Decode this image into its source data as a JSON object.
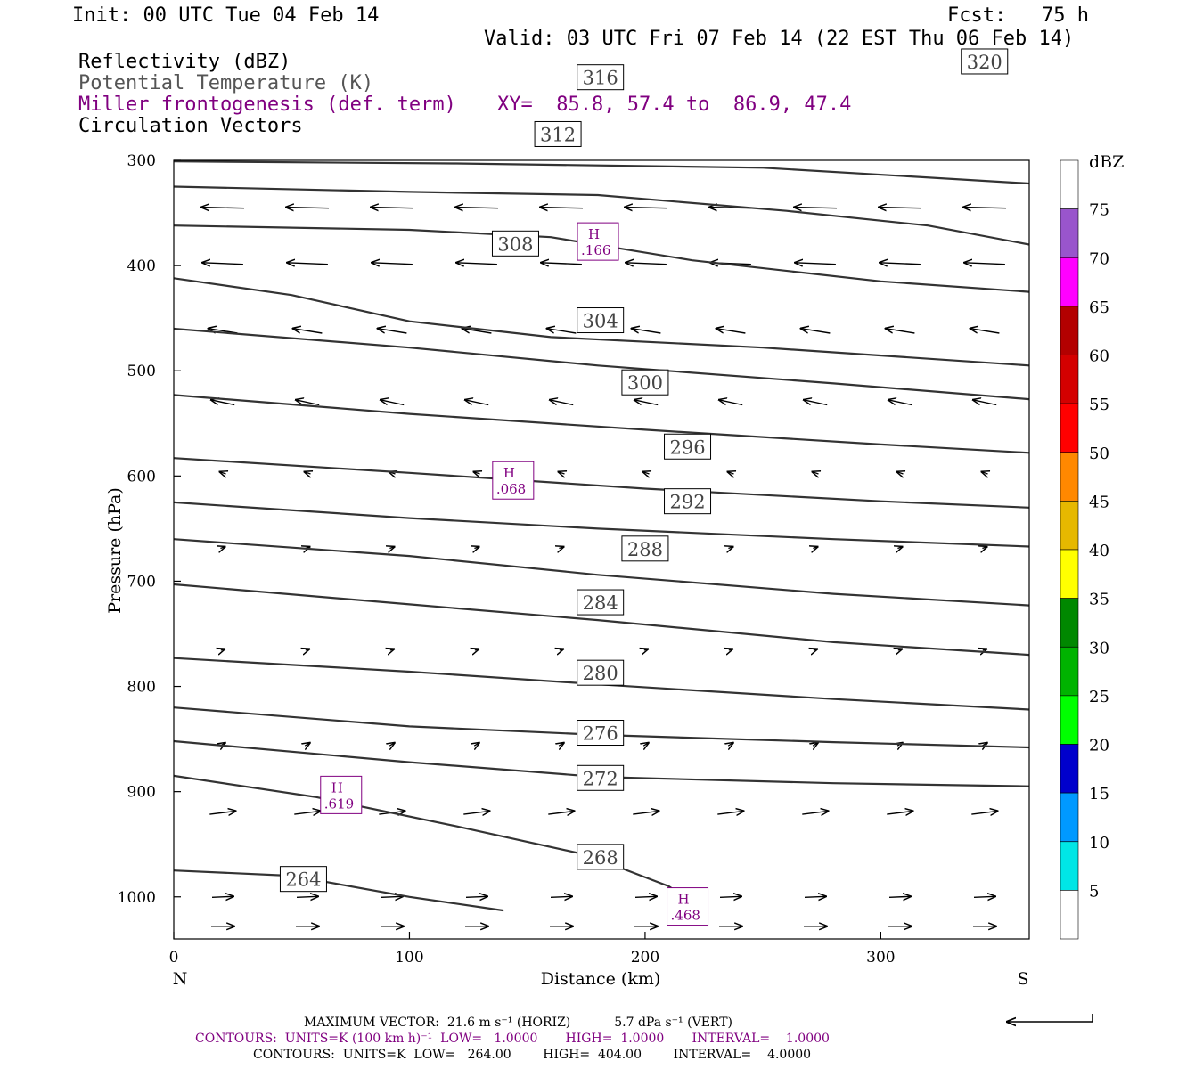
{
  "header": {
    "init": "Init: 00 UTC Tue 04 Feb 14",
    "fcst": "Fcst:   75 h",
    "valid": "Valid: 03 UTC Fri 07 Feb 14 (22 EST Thu 06 Feb 14)",
    "field1": "Reflectivity (dBZ)",
    "field2": "Potential Temperature (K)",
    "field3": "Miller frontogenesis (def. term)",
    "xy": "XY=  85.8, 57.4 to  86.9, 47.4",
    "field4": "Circulation Vectors"
  },
  "colors": {
    "purple": "#800080",
    "theta_line": "#333333",
    "axis": "#000000"
  },
  "chart_data": {
    "type": "line",
    "xlabel": "Distance (km)",
    "ylabel": "Pressure (hPa)",
    "xlim": [
      0,
      363
    ],
    "ylim": [
      1040,
      300
    ],
    "x_ticks": [
      0,
      100,
      200,
      300
    ],
    "y_ticks": [
      300,
      400,
      500,
      600,
      700,
      800,
      900,
      1000
    ],
    "x_end_labels": [
      "N",
      "S"
    ],
    "theta_contours": [
      {
        "label": "264",
        "points": [
          [
            0,
            975
          ],
          [
            50,
            980
          ],
          [
            100,
            1000
          ],
          [
            140,
            1013
          ]
        ],
        "label_at": [
          55,
          983
        ]
      },
      {
        "label": "268",
        "points": [
          [
            0,
            885
          ],
          [
            60,
            905
          ],
          [
            120,
            933
          ],
          [
            175,
            960
          ],
          [
            210,
            990
          ],
          [
            222,
            1008
          ]
        ],
        "label_at": [
          181,
          962
        ]
      },
      {
        "label": "272",
        "points": [
          [
            0,
            852
          ],
          [
            100,
            872
          ],
          [
            180,
            886
          ],
          [
            280,
            892
          ],
          [
            363,
            895
          ]
        ],
        "label_at": [
          181,
          887
        ]
      },
      {
        "label": "276",
        "points": [
          [
            0,
            820
          ],
          [
            100,
            838
          ],
          [
            180,
            846
          ],
          [
            280,
            853
          ],
          [
            363,
            858
          ]
        ],
        "label_at": [
          181,
          844
        ]
      },
      {
        "label": "280",
        "points": [
          [
            0,
            773
          ],
          [
            100,
            786
          ],
          [
            180,
            798
          ],
          [
            280,
            812
          ],
          [
            363,
            822
          ]
        ],
        "label_at": [
          181,
          787
        ]
      },
      {
        "label": "284",
        "points": [
          [
            0,
            703
          ],
          [
            100,
            722
          ],
          [
            180,
            737
          ],
          [
            280,
            758
          ],
          [
            363,
            770
          ]
        ],
        "label_at": [
          181,
          720
        ]
      },
      {
        "label": "288",
        "points": [
          [
            0,
            660
          ],
          [
            100,
            676
          ],
          [
            180,
            694
          ],
          [
            280,
            712
          ],
          [
            363,
            723
          ]
        ],
        "label_at": [
          200,
          669
        ]
      },
      {
        "label": "292",
        "points": [
          [
            0,
            625
          ],
          [
            100,
            640
          ],
          [
            180,
            650
          ],
          [
            280,
            660
          ],
          [
            363,
            667
          ]
        ],
        "label_at": [
          218,
          624
        ]
      },
      {
        "label": "296",
        "points": [
          [
            0,
            583
          ],
          [
            100,
            597
          ],
          [
            200,
            612
          ],
          [
            300,
            624
          ],
          [
            363,
            630
          ]
        ],
        "label_at": [
          218,
          572
        ]
      },
      {
        "label": "300",
        "points": [
          [
            0,
            523
          ],
          [
            100,
            541
          ],
          [
            200,
            556
          ],
          [
            300,
            570
          ],
          [
            363,
            578
          ]
        ],
        "label_at": [
          200,
          511
        ]
      },
      {
        "label": "304",
        "points": [
          [
            0,
            460
          ],
          [
            100,
            478
          ],
          [
            180,
            495
          ],
          [
            280,
            512
          ],
          [
            363,
            527
          ]
        ],
        "label_at": [
          181,
          452
        ]
      },
      {
        "label": "308",
        "points": [
          [
            0,
            412
          ],
          [
            50,
            428
          ],
          [
            100,
            453
          ],
          [
            160,
            468
          ],
          [
            250,
            478
          ],
          [
            363,
            495
          ]
        ],
        "label_at": [
          145,
          379
        ]
      },
      {
        "label": "312",
        "points": [
          [
            0,
            362
          ],
          [
            100,
            366
          ],
          [
            160,
            373
          ],
          [
            220,
            395
          ],
          [
            300,
            415
          ],
          [
            363,
            425
          ]
        ],
        "label_at": [
          163,
          275
        ]
      },
      {
        "label": "316",
        "points": [
          [
            0,
            325
          ],
          [
            100,
            330
          ],
          [
            180,
            333
          ],
          [
            260,
            348
          ],
          [
            320,
            362
          ],
          [
            363,
            380
          ]
        ],
        "label_at": [
          181,
          221
        ]
      },
      {
        "label": "320",
        "points": [
          [
            0,
            301
          ],
          [
            120,
            303
          ],
          [
            250,
            307
          ],
          [
            363,
            322
          ]
        ],
        "label_at": [
          344,
          206
        ]
      }
    ],
    "frontogenesis_maxima": [
      {
        "label": "H",
        "value": ".166",
        "x": 180,
        "p": 378
      },
      {
        "label": "H",
        "value": ".068",
        "x": 144,
        "p": 605
      },
      {
        "label": "H",
        "value": ".619",
        "x": 71,
        "p": 904
      },
      {
        "label": "H",
        "value": ".468",
        "x": 218,
        "p": 1010
      }
    ],
    "colorbar": {
      "title": "dBZ",
      "labels": [
        "75",
        "70",
        "65",
        "60",
        "55",
        "50",
        "45",
        "40",
        "35",
        "30",
        "25",
        "20",
        "15",
        "10",
        "5"
      ],
      "colors": [
        "#ffffff",
        "#9955cc",
        "#ff00ff",
        "#b30000",
        "#d40000",
        "#ff0000",
        "#ff8800",
        "#e6b800",
        "#ffff00",
        "#008800",
        "#00b300",
        "#00ff00",
        "#0000cc",
        "#0099ff",
        "#00e6e6",
        "#ffffff"
      ]
    }
  },
  "footer": {
    "max_vector": "MAXIMUM VECTOR:  21.6 m s⁻¹ (HORIZ)           5.7 dPa s⁻¹ (VERT)",
    "contours_purple": "CONTOURS:  UNITS=K (100 km h)⁻¹  LOW=   1.0000       HIGH=  1.0000       INTERVAL=    1.0000",
    "contours_black": "CONTOURS:  UNITS=K  LOW=   264.00        HIGH=  404.00        INTERVAL=    4.0000"
  }
}
